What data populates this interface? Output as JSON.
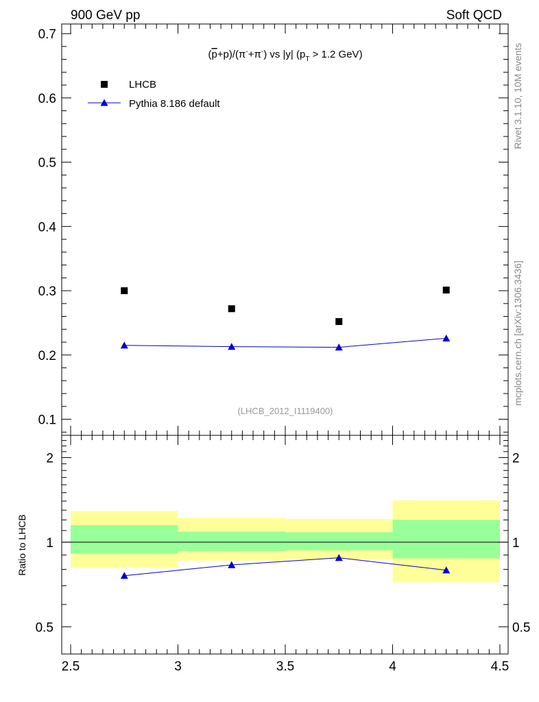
{
  "header": {
    "left": "900 GeV pp",
    "right": "Soft QCD"
  },
  "side_labels": {
    "rivet": "Rivet 3.1.10,  10M events",
    "source": "mcplots.cern.ch [arXiv:1306.3436]"
  },
  "chart_data": [
    {
      "type": "scatter",
      "panel": "main",
      "title_parts": {
        "open": "(",
        "pbar_letter": "p",
        "mid1": "+p)/(π",
        "sup1": "-",
        "mid2": "+π",
        "sup2": "-",
        "mid3": ") vs |y| (p",
        "sub": "T",
        "tail": " > 1.2 GeV)"
      },
      "analysis_id": "(LHCB_2012_I1119400)",
      "xlim": [
        2.5,
        4.5
      ],
      "ylim": [
        0.075,
        0.715
      ],
      "yticks": [
        0.1,
        0.2,
        0.3,
        0.4,
        0.5,
        0.6,
        0.7
      ],
      "ytick_labels": [
        "0.1",
        "0.2",
        "0.3",
        "0.4",
        "0.5",
        "0.6",
        "0.7"
      ],
      "legend": [
        {
          "label": "LHCB",
          "style": "data"
        },
        {
          "label": "Pythia 8.186 default",
          "style": "mc"
        }
      ],
      "legend_placement": "top-left",
      "series": [
        {
          "name": "LHCB",
          "x": [
            2.75,
            3.25,
            3.75,
            4.25
          ],
          "values": [
            0.3,
            0.272,
            0.252,
            0.301
          ],
          "color": "#000000",
          "marker": "square"
        },
        {
          "name": "Pythia 8.186 default",
          "x": [
            2.75,
            3.25,
            3.75,
            4.25
          ],
          "values": [
            0.215,
            0.213,
            0.212,
            0.226
          ],
          "color": "#0000cc",
          "marker": "triangle"
        }
      ]
    },
    {
      "type": "line",
      "panel": "ratio",
      "ylabel": "Ratio to LHCB",
      "scale": "log",
      "xlim": [
        2.5,
        4.5
      ],
      "ylim": [
        0.4,
        2.4
      ],
      "yticks": [
        0.5,
        1,
        2
      ],
      "ytick_labels": [
        "0.5",
        "1",
        "2"
      ],
      "xticks": [
        2.5,
        3,
        3.5,
        4,
        4.5
      ],
      "xtick_labels": [
        "2.5",
        "3",
        "3.5",
        "4",
        "4.5"
      ],
      "bands": [
        {
          "x": [
            2.5,
            3.0
          ],
          "inner": [
            0.91,
            1.15
          ],
          "outer": [
            0.81,
            1.29
          ]
        },
        {
          "x": [
            3.0,
            3.5
          ],
          "inner": [
            0.93,
            1.09
          ],
          "outer": [
            0.86,
            1.22
          ]
        },
        {
          "x": [
            3.5,
            4.0
          ],
          "inner": [
            0.935,
            1.085
          ],
          "outer": [
            0.87,
            1.21
          ]
        },
        {
          "x": [
            4.0,
            4.5
          ],
          "inner": [
            0.875,
            1.2
          ],
          "outer": [
            0.72,
            1.41
          ]
        }
      ],
      "band_colors": {
        "inner": "#99ff99",
        "outer": "#ffff99"
      },
      "series": [
        {
          "name": "Pythia 8.186 default",
          "x": [
            2.75,
            3.25,
            3.75,
            4.25
          ],
          "values": [
            0.76,
            0.83,
            0.88,
            0.795
          ],
          "color": "#0000cc",
          "marker": "triangle"
        }
      ]
    }
  ]
}
